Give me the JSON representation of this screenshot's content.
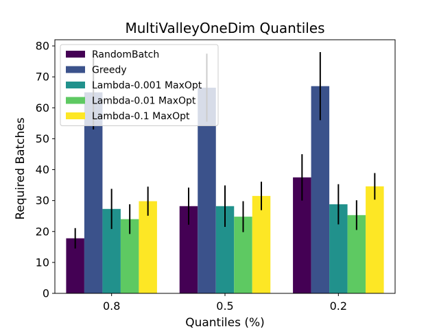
{
  "chart_data": {
    "type": "bar",
    "title": "MultiValleyOneDim Quantiles",
    "xlabel": "Quantiles (%)",
    "ylabel": "Required Batches",
    "categories": [
      "0.8",
      "0.5",
      "0.2"
    ],
    "ylim": [
      0,
      82
    ],
    "yticks": [
      0,
      10,
      20,
      30,
      40,
      50,
      60,
      70,
      80
    ],
    "legend_position": "top-left",
    "grid": false,
    "series": [
      {
        "name": "RandomBatch",
        "color": "#440154",
        "values": [
          17.8,
          28.2,
          37.5
        ],
        "errors": [
          3.3,
          6.0,
          7.5
        ]
      },
      {
        "name": "Greedy",
        "color": "#3b528b",
        "values": [
          65.0,
          66.5,
          67.0
        ],
        "errors": [
          12.0,
          11.0,
          11.0
        ]
      },
      {
        "name": "Lambda-0.001 MaxOpt",
        "color": "#21918c",
        "values": [
          27.3,
          28.2,
          28.8
        ],
        "errors": [
          6.5,
          6.7,
          6.5
        ]
      },
      {
        "name": "Lambda-0.01 MaxOpt",
        "color": "#5ec962",
        "values": [
          24.0,
          24.8,
          25.3
        ],
        "errors": [
          4.8,
          5.0,
          4.8
        ]
      },
      {
        "name": "Lambda-0.1 MaxOpt",
        "color": "#fde725",
        "values": [
          29.8,
          31.5,
          34.6
        ],
        "errors": [
          4.7,
          4.6,
          4.3
        ]
      }
    ]
  }
}
